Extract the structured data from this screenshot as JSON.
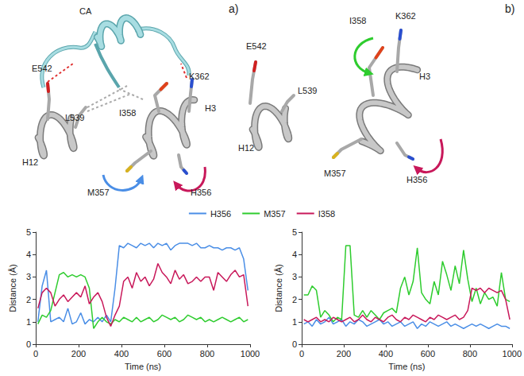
{
  "figure": {
    "panels": [
      {
        "label": "a)",
        "labels": [
          "CA",
          "E542",
          "L539",
          "I358",
          "K362",
          "H3",
          "H12",
          "M357",
          "H356"
        ]
      },
      {
        "label": "b)",
        "labels": [
          "E542",
          "L539",
          "I358",
          "K362",
          "H3",
          "H12",
          "M357",
          "H356"
        ]
      }
    ]
  },
  "chart_data": [
    {
      "type": "line",
      "xlabel": "Time (ns)",
      "ylabel": "Distance (Å)",
      "xlim": [
        0,
        1000
      ],
      "xticks": [
        0,
        200,
        400,
        600,
        800,
        1000
      ],
      "ylim": [
        0,
        5
      ],
      "yticks": [
        0,
        1,
        2,
        3,
        4,
        5
      ],
      "grid": false,
      "legend": "top",
      "x": [
        10,
        30,
        50,
        70,
        90,
        110,
        130,
        150,
        170,
        190,
        210,
        230,
        250,
        270,
        290,
        310,
        330,
        350,
        370,
        390,
        410,
        430,
        450,
        470,
        490,
        510,
        530,
        550,
        570,
        590,
        610,
        630,
        650,
        670,
        690,
        710,
        730,
        750,
        770,
        790,
        810,
        830,
        850,
        870,
        890,
        910,
        930,
        950,
        970,
        990
      ],
      "series": [
        {
          "name": "H356",
          "color": "#4a8ee6",
          "values": [
            1.0,
            2.6,
            3.3,
            1.0,
            1.1,
            1.2,
            1.0,
            1.6,
            0.9,
            1.0,
            1.4,
            0.9,
            1.1,
            1.0,
            1.2,
            1.0,
            1.3,
            1.0,
            2.5,
            4.4,
            4.3,
            4.5,
            4.4,
            4.3,
            4.5,
            4.4,
            4.5,
            4.3,
            4.5,
            4.4,
            4.5,
            4.2,
            4.4,
            4.5,
            4.5,
            4.5,
            4.4,
            4.5,
            4.3,
            4.3,
            4.4,
            4.3,
            4.3,
            4.2,
            4.3,
            4.3,
            4.2,
            4.3,
            3.8,
            2.4
          ]
        },
        {
          "name": "M357",
          "color": "#2ecc2e",
          "values": [
            0.9,
            1.3,
            1.2,
            1.5,
            2.3,
            3.1,
            3.2,
            3.0,
            3.1,
            3.0,
            3.1,
            3.0,
            2.5,
            0.7,
            1.0,
            1.2,
            1.0,
            0.9,
            1.1,
            1.0,
            1.2,
            1.1,
            1.0,
            1.2,
            1.0,
            1.1,
            1.2,
            1.0,
            1.1,
            1.3,
            1.2,
            1.1,
            1.2,
            1.0,
            1.1,
            1.3,
            1.2,
            1.1,
            1.2,
            1.0,
            1.1,
            1.0,
            1.1,
            1.2,
            1.1,
            1.0,
            1.1,
            1.2,
            1.0,
            1.1
          ]
        },
        {
          "name": "I358",
          "color": "#c8185a",
          "values": [
            1.6,
            2.3,
            2.5,
            2.3,
            1.7,
            2.0,
            2.2,
            1.9,
            2.1,
            2.3,
            2.1,
            2.6,
            1.8,
            2.1,
            2.3,
            1.9,
            1.2,
            0.8,
            1.3,
            1.7,
            2.8,
            3.0,
            2.5,
            3.2,
            2.8,
            3.0,
            2.6,
            2.9,
            3.6,
            3.2,
            3.0,
            2.7,
            3.3,
            2.9,
            3.1,
            2.7,
            2.8,
            3.0,
            2.8,
            3.0,
            3.0,
            2.4,
            3.2,
            3.0,
            2.8,
            3.1,
            3.3,
            3.0,
            3.1,
            1.7
          ]
        }
      ]
    },
    {
      "type": "line",
      "xlabel": "Time (ns)",
      "ylabel": "Distance (Å)",
      "xlim": [
        0,
        1000
      ],
      "xticks": [
        0,
        200,
        400,
        600,
        800,
        1000
      ],
      "ylim": [
        0,
        5
      ],
      "yticks": [
        0,
        1,
        2,
        3,
        4,
        5
      ],
      "grid": false,
      "legend": "top",
      "x": [
        10,
        30,
        50,
        70,
        90,
        110,
        130,
        150,
        170,
        190,
        210,
        230,
        250,
        270,
        290,
        310,
        330,
        350,
        370,
        390,
        410,
        430,
        450,
        470,
        490,
        510,
        530,
        550,
        570,
        590,
        610,
        630,
        650,
        670,
        690,
        710,
        730,
        750,
        770,
        790,
        810,
        830,
        850,
        870,
        890,
        910,
        930,
        950,
        970,
        990
      ],
      "series": [
        {
          "name": "H356",
          "color": "#4a8ee6",
          "values": [
            0.9,
            1.0,
            0.8,
            1.1,
            0.9,
            1.0,
            1.2,
            0.9,
            1.0,
            1.1,
            0.8,
            1.0,
            0.9,
            1.1,
            1.0,
            0.8,
            0.9,
            1.0,
            1.1,
            0.9,
            1.0,
            0.8,
            0.9,
            1.0,
            0.8,
            0.9,
            1.0,
            0.7,
            0.9,
            0.8,
            1.0,
            0.9,
            0.8,
            0.9,
            1.0,
            0.8,
            0.9,
            0.8,
            0.7,
            0.8,
            0.9,
            0.8,
            0.9,
            0.8,
            0.7,
            0.8,
            0.9,
            0.8,
            0.8,
            0.7
          ]
        },
        {
          "name": "M357",
          "color": "#2ecc2e",
          "values": [
            2.2,
            2.2,
            2.6,
            2.4,
            1.2,
            1.5,
            1.3,
            1.0,
            1.2,
            1.1,
            4.4,
            4.4,
            1.3,
            1.2,
            1.5,
            1.2,
            1.5,
            1.3,
            1.1,
            1.4,
            1.5,
            1.6,
            1.4,
            2.5,
            3.0,
            2.2,
            2.8,
            4.3,
            2.3,
            2.0,
            1.8,
            2.8,
            2.2,
            3.7,
            3.1,
            2.4,
            3.5,
            2.7,
            4.2,
            2.9,
            1.9,
            2.5,
            1.8,
            2.3,
            2.0,
            2.1,
            1.7,
            3.2,
            2.0,
            1.9
          ]
        },
        {
          "name": "I358",
          "color": "#c8185a",
          "values": [
            1.1,
            1.0,
            1.1,
            1.2,
            1.0,
            1.1,
            1.0,
            1.2,
            1.1,
            1.0,
            1.1,
            1.2,
            1.0,
            1.1,
            1.3,
            1.1,
            1.0,
            1.2,
            1.1,
            1.0,
            1.2,
            1.3,
            1.1,
            1.0,
            1.2,
            1.1,
            1.3,
            1.2,
            1.1,
            1.0,
            1.2,
            1.1,
            1.3,
            1.2,
            1.1,
            1.2,
            1.3,
            1.1,
            1.2,
            1.5,
            2.5,
            2.4,
            2.5,
            2.3,
            2.5,
            2.4,
            2.3,
            2.4,
            2.0,
            1.1
          ]
        }
      ]
    }
  ]
}
